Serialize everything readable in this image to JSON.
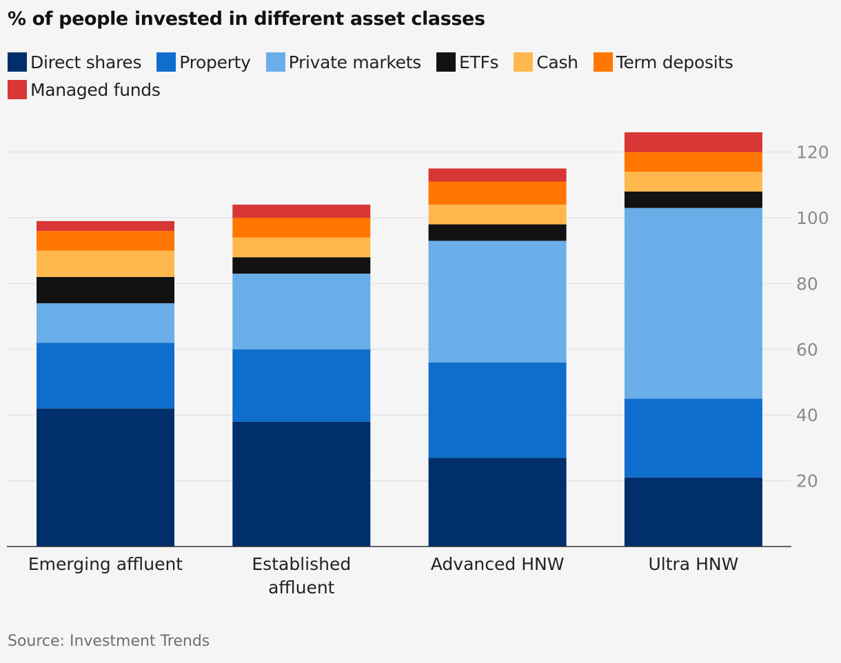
{
  "title": "% of people invested in different asset classes",
  "source": "Source: Investment Trends",
  "chart_data": {
    "type": "bar",
    "stacked": true,
    "title": "% of people invested in different asset classes",
    "categories": [
      [
        "Emerging affluent"
      ],
      [
        "Established",
        "affluent"
      ],
      [
        "Advanced HNW"
      ],
      [
        "Ultra HNW"
      ]
    ],
    "series": [
      {
        "name": "Direct shares",
        "color": "#002f6c",
        "values": [
          42,
          38,
          27,
          21
        ]
      },
      {
        "name": "Property",
        "color": "#0f6ecd",
        "values": [
          20,
          22,
          29,
          24
        ]
      },
      {
        "name": "Private markets",
        "color": "#69aee8",
        "values": [
          12,
          23,
          37,
          58
        ]
      },
      {
        "name": "ETFs",
        "color": "#121212",
        "values": [
          8,
          5,
          5,
          5
        ]
      },
      {
        "name": "Cash",
        "color": "#ffb84d",
        "values": [
          8,
          6,
          6,
          6
        ]
      },
      {
        "name": "Term deposits",
        "color": "#ff7700",
        "values": [
          6,
          6,
          7,
          6
        ]
      },
      {
        "name": "Managed funds",
        "color": "#d93636",
        "values": [
          3,
          4,
          4,
          6
        ]
      }
    ],
    "y_ticks": [
      20,
      40,
      60,
      80,
      100,
      120
    ],
    "ylim": [
      0,
      130
    ],
    "y_axis_side": "right",
    "grid": true,
    "legend_position": "top"
  }
}
